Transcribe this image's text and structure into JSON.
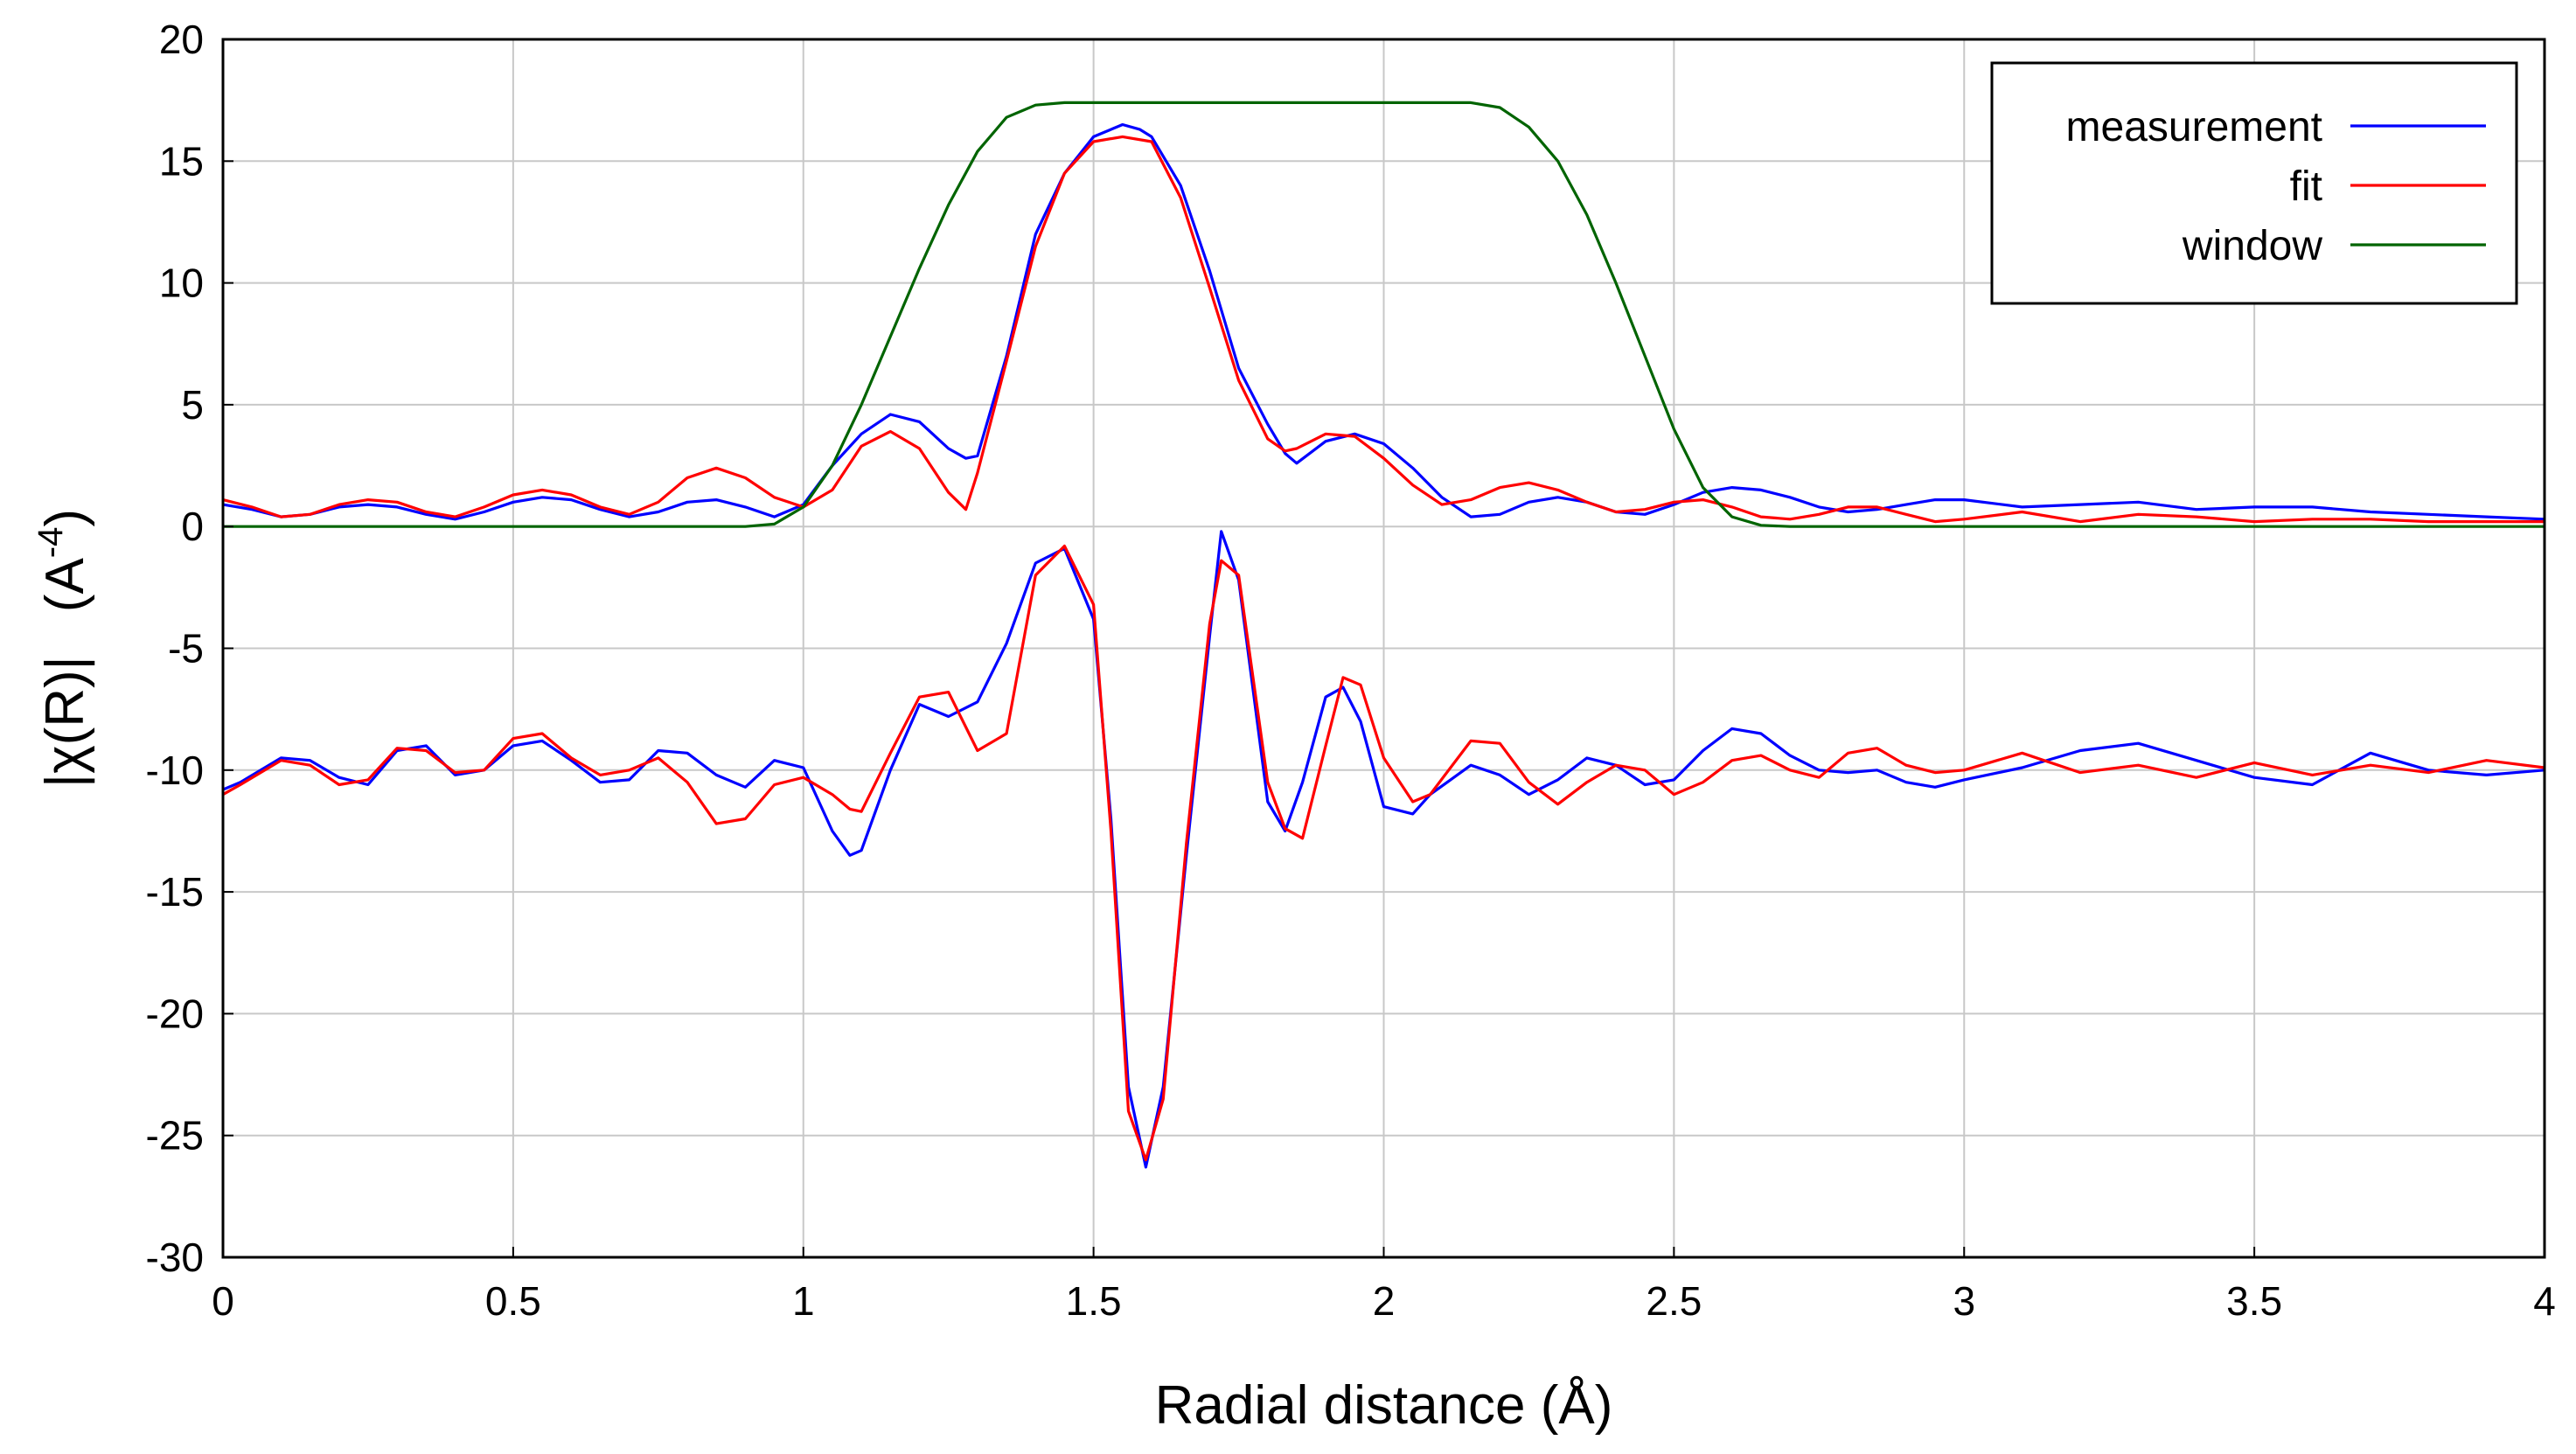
{
  "chart_data": {
    "type": "line",
    "xlabel": "Radial distance    (Å)",
    "ylabel_main": "|χ(R)|",
    "ylabel_unit_base": "(A",
    "ylabel_unit_exp": "-4",
    "ylabel_unit_close": ")",
    "xlim": [
      0,
      4
    ],
    "ylim": [
      -30,
      20
    ],
    "xticks": [
      0,
      0.5,
      1,
      1.5,
      2,
      2.5,
      3,
      3.5,
      4
    ],
    "xtick_labels": [
      "0",
      "0.5",
      "1",
      "1.5",
      "2",
      "2.5",
      "3",
      "3.5",
      "4"
    ],
    "yticks": [
      -30,
      -25,
      -20,
      -15,
      -10,
      -5,
      0,
      5,
      10,
      15,
      20
    ],
    "ytick_labels": [
      "-30",
      "-25",
      "-20",
      "-15",
      "-10",
      "-5",
      "0",
      "5",
      "10",
      "15",
      "20"
    ],
    "grid": true,
    "legend_position": "top-right",
    "series": [
      {
        "name": "measurement",
        "color": "#0000ff",
        "x": [
          0,
          0.05,
          0.1,
          0.15,
          0.2,
          0.25,
          0.3,
          0.35,
          0.4,
          0.45,
          0.5,
          0.55,
          0.6,
          0.65,
          0.7,
          0.75,
          0.8,
          0.85,
          0.9,
          0.95,
          1.0,
          1.05,
          1.1,
          1.15,
          1.2,
          1.25,
          1.28,
          1.3,
          1.35,
          1.4,
          1.45,
          1.5,
          1.55,
          1.58,
          1.6,
          1.65,
          1.7,
          1.75,
          1.8,
          1.83,
          1.85,
          1.9,
          1.95,
          2.0,
          2.05,
          2.1,
          2.15,
          2.2,
          2.25,
          2.3,
          2.35,
          2.4,
          2.45,
          2.5,
          2.55,
          2.6,
          2.65,
          2.7,
          2.75,
          2.8,
          2.85,
          2.9,
          2.95,
          3.0,
          3.1,
          3.2,
          3.3,
          3.4,
          3.5,
          3.6,
          3.7,
          3.8,
          3.9,
          4.0
        ],
        "y": [
          0.9,
          0.7,
          0.4,
          0.5,
          0.8,
          0.9,
          0.8,
          0.5,
          0.3,
          0.6,
          1.0,
          1.2,
          1.1,
          0.7,
          0.4,
          0.6,
          1.0,
          1.1,
          0.8,
          0.4,
          0.9,
          2.5,
          3.8,
          4.6,
          4.3,
          3.2,
          2.8,
          2.9,
          7.0,
          12.0,
          14.5,
          16.0,
          16.5,
          16.3,
          16.0,
          14.0,
          10.5,
          6.5,
          4.2,
          3.0,
          2.6,
          3.5,
          3.8,
          3.4,
          2.4,
          1.2,
          0.4,
          0.5,
          1.0,
          1.2,
          1.0,
          0.6,
          0.5,
          0.9,
          1.4,
          1.6,
          1.5,
          1.2,
          0.8,
          0.6,
          0.7,
          0.9,
          1.1,
          1.1,
          0.8,
          0.9,
          1.0,
          0.7,
          0.8,
          0.8,
          0.6,
          0.5,
          0.4,
          0.3
        ]
      },
      {
        "name": "fit",
        "color": "#ff0000",
        "x": [
          0,
          0.05,
          0.1,
          0.15,
          0.2,
          0.25,
          0.3,
          0.35,
          0.4,
          0.45,
          0.5,
          0.55,
          0.6,
          0.65,
          0.7,
          0.75,
          0.8,
          0.85,
          0.9,
          0.95,
          1.0,
          1.05,
          1.1,
          1.15,
          1.2,
          1.25,
          1.28,
          1.3,
          1.35,
          1.4,
          1.45,
          1.5,
          1.55,
          1.6,
          1.65,
          1.7,
          1.75,
          1.8,
          1.83,
          1.85,
          1.9,
          1.95,
          2.0,
          2.05,
          2.1,
          2.15,
          2.2,
          2.25,
          2.3,
          2.35,
          2.4,
          2.45,
          2.5,
          2.55,
          2.6,
          2.65,
          2.7,
          2.75,
          2.8,
          2.85,
          2.9,
          2.95,
          3.0,
          3.1,
          3.2,
          3.3,
          3.4,
          3.5,
          3.6,
          3.7,
          3.8,
          3.9,
          4.0
        ],
        "y": [
          1.1,
          0.8,
          0.4,
          0.5,
          0.9,
          1.1,
          1.0,
          0.6,
          0.4,
          0.8,
          1.3,
          1.5,
          1.3,
          0.8,
          0.5,
          1.0,
          2.0,
          2.4,
          2.0,
          1.2,
          0.8,
          1.5,
          3.3,
          3.9,
          3.2,
          1.4,
          0.7,
          2.2,
          6.8,
          11.5,
          14.5,
          15.8,
          16.0,
          15.8,
          13.5,
          9.8,
          6.0,
          3.6,
          3.1,
          3.2,
          3.8,
          3.7,
          2.8,
          1.7,
          0.9,
          1.1,
          1.6,
          1.8,
          1.5,
          1.0,
          0.6,
          0.7,
          1.0,
          1.1,
          0.8,
          0.4,
          0.3,
          0.5,
          0.8,
          0.8,
          0.5,
          0.2,
          0.3,
          0.6,
          0.2,
          0.5,
          0.4,
          0.2,
          0.3,
          0.3,
          0.2,
          0.2,
          0.2
        ]
      },
      {
        "name": "window",
        "color": "#006400",
        "x": [
          0,
          0.9,
          0.95,
          1.0,
          1.05,
          1.1,
          1.15,
          1.2,
          1.25,
          1.3,
          1.35,
          1.4,
          1.45,
          1.5,
          2.0,
          2.15,
          2.2,
          2.25,
          2.3,
          2.35,
          2.4,
          2.45,
          2.5,
          2.55,
          2.6,
          2.65,
          2.7,
          4.0
        ],
        "y": [
          0,
          0,
          0.1,
          0.8,
          2.5,
          5.0,
          7.8,
          10.6,
          13.2,
          15.4,
          16.8,
          17.3,
          17.4,
          17.4,
          17.4,
          17.4,
          17.2,
          16.4,
          15.0,
          12.8,
          10.0,
          7.0,
          4.0,
          1.6,
          0.4,
          0.05,
          0,
          0
        ]
      },
      {
        "name": "",
        "color": "#0000ff",
        "x": [
          0,
          0.03,
          0.1,
          0.15,
          0.2,
          0.25,
          0.3,
          0.35,
          0.4,
          0.45,
          0.5,
          0.55,
          0.6,
          0.65,
          0.7,
          0.75,
          0.8,
          0.85,
          0.9,
          0.95,
          1.0,
          1.05,
          1.08,
          1.1,
          1.15,
          1.2,
          1.25,
          1.3,
          1.35,
          1.4,
          1.45,
          1.5,
          1.53,
          1.56,
          1.59,
          1.62,
          1.66,
          1.7,
          1.72,
          1.75,
          1.8,
          1.83,
          1.86,
          1.9,
          1.93,
          1.96,
          2.0,
          2.05,
          2.08,
          2.15,
          2.2,
          2.25,
          2.3,
          2.35,
          2.4,
          2.45,
          2.5,
          2.55,
          2.6,
          2.65,
          2.7,
          2.75,
          2.8,
          2.85,
          2.9,
          2.95,
          3.0,
          3.1,
          3.2,
          3.3,
          3.4,
          3.5,
          3.6,
          3.7,
          3.8,
          3.9,
          4.0
        ],
        "y": [
          -10.8,
          -10.5,
          -9.5,
          -9.6,
          -10.3,
          -10.6,
          -9.2,
          -9.0,
          -10.2,
          -10.0,
          -9.0,
          -8.8,
          -9.6,
          -10.5,
          -10.4,
          -9.2,
          -9.3,
          -10.2,
          -10.7,
          -9.6,
          -9.9,
          -12.5,
          -13.5,
          -13.3,
          -10.0,
          -7.3,
          -7.8,
          -7.2,
          -4.8,
          -1.5,
          -0.9,
          -3.8,
          -12.0,
          -23.0,
          -26.3,
          -23.0,
          -13.5,
          -4.5,
          -0.2,
          -2.2,
          -11.3,
          -12.5,
          -10.5,
          -7.0,
          -6.6,
          -8.0,
          -11.5,
          -11.8,
          -11.0,
          -9.8,
          -10.2,
          -11.0,
          -10.4,
          -9.5,
          -9.8,
          -10.6,
          -10.4,
          -9.2,
          -8.3,
          -8.5,
          -9.4,
          -10.0,
          -10.1,
          -10.0,
          -10.5,
          -10.7,
          -10.4,
          -9.9,
          -9.2,
          -8.9,
          -9.6,
          -10.3,
          -10.6,
          -9.3,
          -10.0,
          -10.2,
          -10.0
        ]
      },
      {
        "name": "",
        "color": "#ff0000",
        "x": [
          0,
          0.03,
          0.1,
          0.15,
          0.2,
          0.25,
          0.3,
          0.35,
          0.4,
          0.45,
          0.5,
          0.55,
          0.6,
          0.65,
          0.7,
          0.75,
          0.8,
          0.85,
          0.9,
          0.95,
          1.0,
          1.05,
          1.08,
          1.1,
          1.15,
          1.2,
          1.25,
          1.3,
          1.35,
          1.4,
          1.45,
          1.5,
          1.53,
          1.56,
          1.59,
          1.62,
          1.66,
          1.7,
          1.72,
          1.75,
          1.8,
          1.83,
          1.86,
          1.9,
          1.93,
          1.96,
          2.0,
          2.05,
          2.08,
          2.15,
          2.2,
          2.25,
          2.3,
          2.35,
          2.4,
          2.45,
          2.5,
          2.55,
          2.6,
          2.65,
          2.7,
          2.75,
          2.8,
          2.85,
          2.9,
          2.95,
          3.0,
          3.1,
          3.2,
          3.3,
          3.4,
          3.5,
          3.6,
          3.7,
          3.8,
          3.9,
          4.0
        ],
        "y": [
          -11.0,
          -10.6,
          -9.6,
          -9.8,
          -10.6,
          -10.4,
          -9.1,
          -9.2,
          -10.1,
          -10.0,
          -8.7,
          -8.5,
          -9.5,
          -10.2,
          -10.0,
          -9.5,
          -10.5,
          -12.2,
          -12.0,
          -10.6,
          -10.3,
          -11.0,
          -11.6,
          -11.7,
          -9.3,
          -7.0,
          -6.8,
          -9.2,
          -8.5,
          -2.0,
          -0.8,
          -3.2,
          -12.5,
          -24.0,
          -26.0,
          -23.5,
          -13.0,
          -4.0,
          -1.4,
          -2.0,
          -10.5,
          -12.4,
          -12.8,
          -9.0,
          -6.2,
          -6.5,
          -9.5,
          -11.3,
          -11.0,
          -8.8,
          -8.9,
          -10.5,
          -11.4,
          -10.5,
          -9.8,
          -10.0,
          -11.0,
          -10.5,
          -9.6,
          -9.4,
          -10.0,
          -10.3,
          -9.3,
          -9.1,
          -9.8,
          -10.1,
          -10.0,
          -9.3,
          -10.1,
          -9.8,
          -10.3,
          -9.7,
          -10.2,
          -9.8,
          -10.1,
          -9.6,
          -9.9
        ]
      }
    ]
  }
}
